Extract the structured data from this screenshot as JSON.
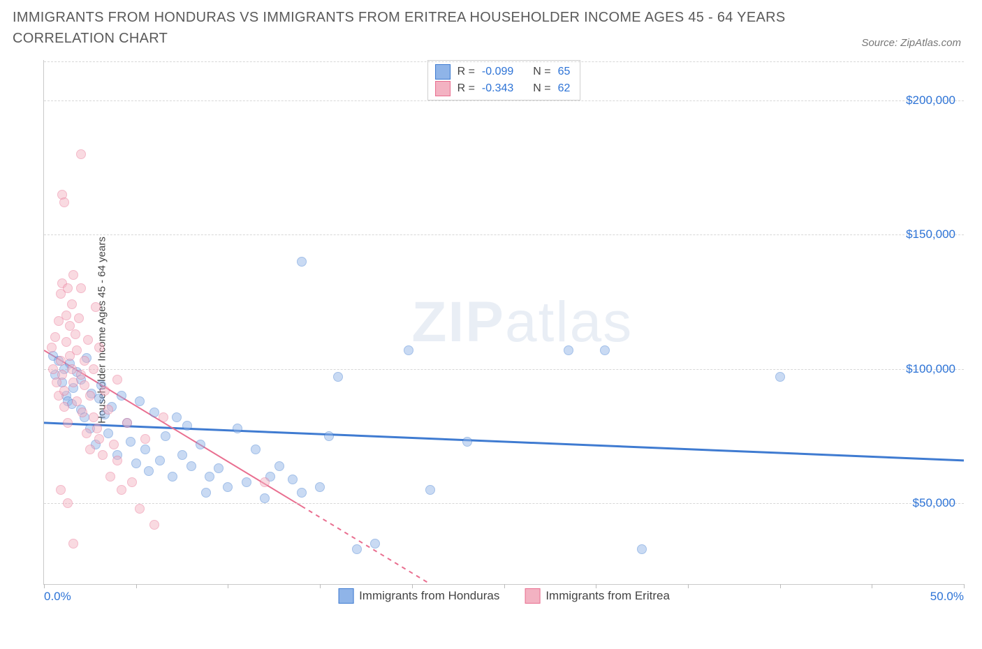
{
  "title": "IMMIGRANTS FROM HONDURAS VS IMMIGRANTS FROM ERITREA HOUSEHOLDER INCOME AGES 45 - 64 YEARS CORRELATION CHART",
  "source_label": "Source: ZipAtlas.com",
  "watermark_a": "ZIP",
  "watermark_b": "atlas",
  "chart": {
    "type": "scatter",
    "ylabel": "Householder Income Ages 45 - 64 years",
    "xlim": [
      0,
      50
    ],
    "ylim": [
      20000,
      215000
    ],
    "x_tick_positions": [
      0,
      5,
      10,
      15,
      20,
      25,
      30,
      35,
      40,
      45,
      50
    ],
    "x_tick_labels_shown": {
      "0": "0.0%",
      "50": "50.0%"
    },
    "y_grid": [
      50000,
      100000,
      150000,
      200000
    ],
    "y_tick_labels": {
      "50000": "$50,000",
      "100000": "$100,000",
      "150000": "$150,000",
      "200000": "$200,000"
    },
    "background_color": "#ffffff",
    "grid_color": "#d7d7d7",
    "axis_color": "#c9c9c9",
    "tick_label_color": "#2d73d6",
    "point_radius": 7,
    "point_opacity": 0.48,
    "series": [
      {
        "key": "honduras",
        "label": "Immigrants from Honduras",
        "color_fill": "#8fb4e8",
        "color_stroke": "#3f7bd1",
        "R": "-0.099",
        "N": "65",
        "trend": {
          "x1": 0,
          "y1": 80000,
          "x2": 50,
          "y2": 66000,
          "width": 3,
          "dash_after_x": null
        },
        "points": [
          [
            0.5,
            105000
          ],
          [
            0.6,
            98000
          ],
          [
            0.8,
            103000
          ],
          [
            1.0,
            95000
          ],
          [
            1.2,
            90000
          ],
          [
            1.3,
            88000
          ],
          [
            1.4,
            102000
          ],
          [
            1.5,
            87000
          ],
          [
            1.6,
            93000
          ],
          [
            1.8,
            99000
          ],
          [
            2.0,
            85000
          ],
          [
            2.0,
            96000
          ],
          [
            2.2,
            82000
          ],
          [
            2.3,
            104000
          ],
          [
            2.5,
            78000
          ],
          [
            2.6,
            91000
          ],
          [
            2.8,
            72000
          ],
          [
            3.0,
            89000
          ],
          [
            3.1,
            94000
          ],
          [
            3.3,
            83000
          ],
          [
            3.5,
            76000
          ],
          [
            3.7,
            86000
          ],
          [
            4.0,
            68000
          ],
          [
            4.2,
            90000
          ],
          [
            4.5,
            80000
          ],
          [
            4.7,
            73000
          ],
          [
            5.0,
            65000
          ],
          [
            5.2,
            88000
          ],
          [
            5.5,
            70000
          ],
          [
            5.7,
            62000
          ],
          [
            6.0,
            84000
          ],
          [
            6.3,
            66000
          ],
          [
            6.6,
            75000
          ],
          [
            7.0,
            60000
          ],
          [
            7.2,
            82000
          ],
          [
            7.5,
            68000
          ],
          [
            7.8,
            79000
          ],
          [
            8.0,
            64000
          ],
          [
            8.5,
            72000
          ],
          [
            8.8,
            54000
          ],
          [
            9.0,
            60000
          ],
          [
            9.5,
            63000
          ],
          [
            10.0,
            56000
          ],
          [
            10.5,
            78000
          ],
          [
            11.0,
            58000
          ],
          [
            11.5,
            70000
          ],
          [
            12.0,
            52000
          ],
          [
            12.3,
            60000
          ],
          [
            12.8,
            64000
          ],
          [
            13.5,
            59000
          ],
          [
            14.0,
            54000
          ],
          [
            15.0,
            56000
          ],
          [
            15.5,
            75000
          ],
          [
            16.0,
            97000
          ],
          [
            17.0,
            33000
          ],
          [
            18.0,
            35000
          ],
          [
            14.0,
            140000
          ],
          [
            19.8,
            107000
          ],
          [
            21.0,
            55000
          ],
          [
            23.0,
            73000
          ],
          [
            28.5,
            107000
          ],
          [
            30.5,
            107000
          ],
          [
            32.5,
            33000
          ],
          [
            40.0,
            97000
          ],
          [
            1.1,
            100000
          ]
        ]
      },
      {
        "key": "eritrea",
        "label": "Immigrants from Eritrea",
        "color_fill": "#f3b2c2",
        "color_stroke": "#e96f90",
        "R": "-0.343",
        "N": "62",
        "trend": {
          "x1": 0,
          "y1": 107000,
          "x2": 21,
          "y2": 20000,
          "width": 2,
          "dash_after_x": 14
        },
        "points": [
          [
            0.4,
            108000
          ],
          [
            0.5,
            100000
          ],
          [
            0.6,
            112000
          ],
          [
            0.7,
            95000
          ],
          [
            0.8,
            118000
          ],
          [
            0.8,
            90000
          ],
          [
            0.9,
            128000
          ],
          [
            0.9,
            103000
          ],
          [
            1.0,
            98000
          ],
          [
            1.0,
            132000
          ],
          [
            1.1,
            92000
          ],
          [
            1.1,
            86000
          ],
          [
            1.2,
            120000
          ],
          [
            1.2,
            110000
          ],
          [
            1.3,
            130000
          ],
          [
            1.3,
            80000
          ],
          [
            1.4,
            116000
          ],
          [
            1.4,
            105000
          ],
          [
            1.5,
            100000
          ],
          [
            1.5,
            124000
          ],
          [
            1.6,
            135000
          ],
          [
            1.6,
            95000
          ],
          [
            1.7,
            113000
          ],
          [
            1.8,
            107000
          ],
          [
            1.8,
            88000
          ],
          [
            1.9,
            119000
          ],
          [
            2.0,
            98000
          ],
          [
            2.0,
            130000
          ],
          [
            2.1,
            84000
          ],
          [
            2.2,
            103000
          ],
          [
            2.2,
            94000
          ],
          [
            2.3,
            76000
          ],
          [
            2.4,
            111000
          ],
          [
            2.5,
            90000
          ],
          [
            2.5,
            70000
          ],
          [
            2.7,
            100000
          ],
          [
            2.7,
            82000
          ],
          [
            2.9,
            78000
          ],
          [
            3.0,
            108000
          ],
          [
            3.0,
            74000
          ],
          [
            3.2,
            68000
          ],
          [
            3.3,
            92000
          ],
          [
            3.5,
            85000
          ],
          [
            3.6,
            60000
          ],
          [
            3.8,
            72000
          ],
          [
            4.0,
            66000
          ],
          [
            4.0,
            96000
          ],
          [
            4.2,
            55000
          ],
          [
            4.5,
            80000
          ],
          [
            4.8,
            58000
          ],
          [
            5.2,
            48000
          ],
          [
            5.5,
            74000
          ],
          [
            6.0,
            42000
          ],
          [
            6.5,
            82000
          ],
          [
            1.0,
            165000
          ],
          [
            1.1,
            162000
          ],
          [
            2.0,
            180000
          ],
          [
            0.9,
            55000
          ],
          [
            1.3,
            50000
          ],
          [
            1.6,
            35000
          ],
          [
            2.8,
            123000
          ],
          [
            12.0,
            58000
          ]
        ]
      }
    ],
    "stats_labels": {
      "R": "R =",
      "N": "N ="
    }
  }
}
